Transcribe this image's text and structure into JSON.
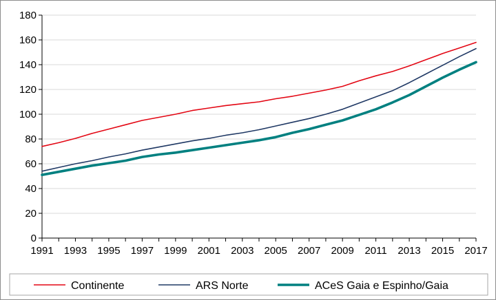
{
  "chart_data": {
    "type": "line",
    "title": "",
    "xlabel": "",
    "ylabel": "",
    "ylim": [
      0,
      180
    ],
    "yticks": [
      0,
      20,
      40,
      60,
      80,
      100,
      120,
      140,
      160,
      180
    ],
    "xlim": [
      1991,
      2017
    ],
    "xtick_labels": [
      "1991",
      "1993",
      "1995",
      "1997",
      "1999",
      "2001",
      "2003",
      "2005",
      "2007",
      "2009",
      "2011",
      "2013",
      "2015",
      "2017"
    ],
    "grid": "horizontal",
    "legend_position": "bottom",
    "x": [
      1991,
      1992,
      1993,
      1994,
      1995,
      1996,
      1997,
      1998,
      1999,
      2000,
      2001,
      2002,
      2003,
      2004,
      2005,
      2006,
      2007,
      2008,
      2009,
      2010,
      2011,
      2012,
      2013,
      2014,
      2015,
      2016,
      2017
    ],
    "series": [
      {
        "name": "Continente",
        "color": "#e30613",
        "width": 1.6,
        "values": [
          74,
          77,
          80.5,
          84.5,
          88,
          91.5,
          95,
          97.5,
          100,
          103,
          105,
          107,
          108.5,
          110,
          112.5,
          114.5,
          117,
          119.5,
          122.5,
          127,
          131,
          134.5,
          139,
          144,
          149,
          153.5,
          158
        ]
      },
      {
        "name": "ARS Norte",
        "color": "#1f3864",
        "width": 1.6,
        "values": [
          54,
          57,
          60,
          62.5,
          65.5,
          68,
          71,
          73.5,
          76,
          78.5,
          80.5,
          83,
          85,
          87.5,
          90.5,
          93.5,
          96.5,
          100,
          104,
          109,
          114,
          119,
          125.5,
          132.5,
          139.5,
          146.5,
          153
        ]
      },
      {
        "name": "ACeS Gaia e Espinho/Gaia",
        "color": "#008080",
        "width": 3.6,
        "values": [
          51,
          53.5,
          56,
          58.5,
          60.5,
          62.5,
          65.5,
          67.5,
          69,
          71,
          73,
          75,
          77,
          79,
          81.5,
          85,
          88,
          91.5,
          95,
          99.5,
          104,
          109.5,
          115.5,
          122.5,
          129.5,
          136,
          142
        ]
      }
    ]
  }
}
